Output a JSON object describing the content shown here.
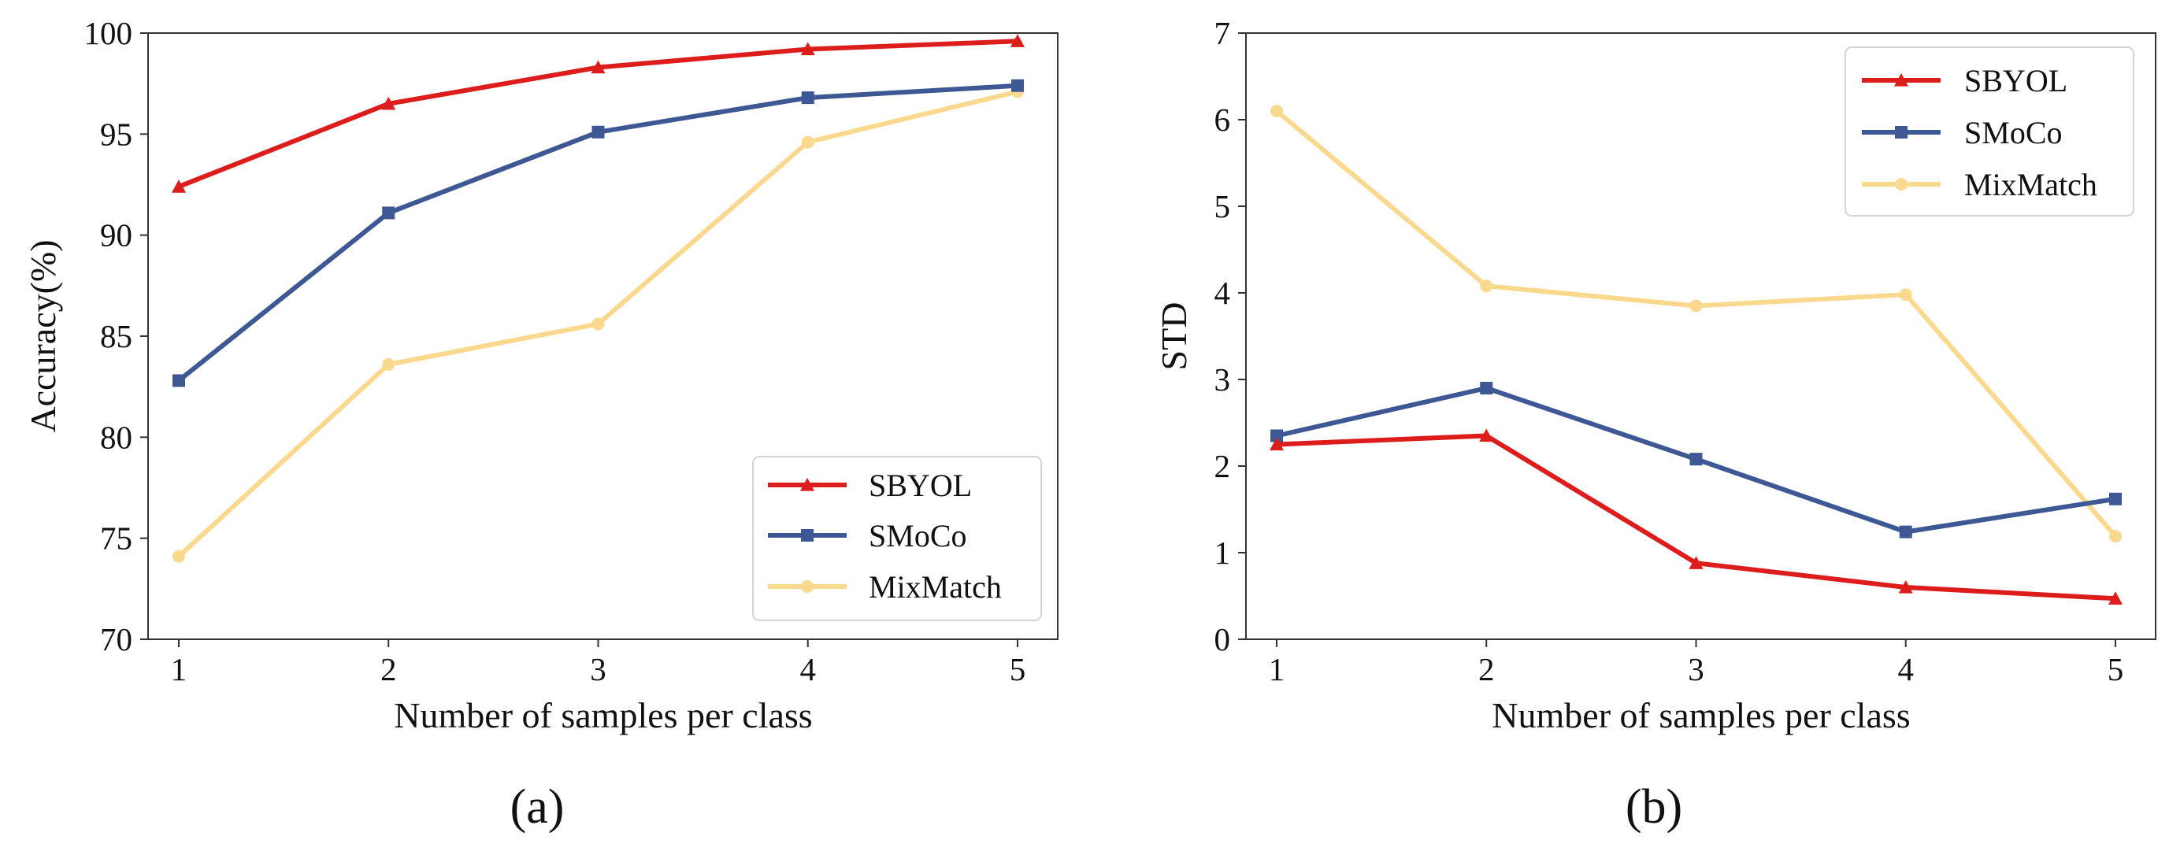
{
  "chart_data": [
    {
      "id": "a",
      "type": "line",
      "caption": "(a)",
      "title": "",
      "xlabel": "Number of samples per class",
      "ylabel": "Accuracy(%)",
      "x": [
        1,
        2,
        3,
        4,
        5
      ],
      "xticks": [
        "1",
        "2",
        "3",
        "4",
        "5"
      ],
      "ylim": [
        70,
        100
      ],
      "yticks": [
        "70",
        "75",
        "80",
        "85",
        "90",
        "95",
        "100"
      ],
      "grid": false,
      "legend_position": "lower-right",
      "series": [
        {
          "name": "SBYOL",
          "color": "#dd1c1c",
          "marker": "triangle",
          "values": [
            92.4,
            96.5,
            98.3,
            99.2,
            99.6
          ]
        },
        {
          "name": "SMoCo",
          "color": "#3d5894",
          "marker": "square",
          "values": [
            82.8,
            91.1,
            95.1,
            96.8,
            97.4
          ]
        },
        {
          "name": "MixMatch",
          "color": "#fad98e",
          "marker": "circle",
          "values": [
            74.1,
            83.6,
            85.6,
            94.6,
            97.1
          ]
        }
      ]
    },
    {
      "id": "b",
      "type": "line",
      "caption": "(b)",
      "title": "",
      "xlabel": "Number of samples per class",
      "ylabel": "STD",
      "x": [
        1,
        2,
        3,
        4,
        5
      ],
      "xticks": [
        "1",
        "2",
        "3",
        "4",
        "5"
      ],
      "ylim": [
        0,
        7
      ],
      "yticks": [
        "0",
        "1",
        "2",
        "3",
        "4",
        "5",
        "6",
        "7"
      ],
      "grid": false,
      "legend_position": "upper-right",
      "series": [
        {
          "name": "SBYOL",
          "color": "#dd1c1c",
          "marker": "triangle",
          "values": [
            2.25,
            2.35,
            0.88,
            0.6,
            0.47
          ]
        },
        {
          "name": "SMoCo",
          "color": "#3d5894",
          "marker": "square",
          "values": [
            2.35,
            2.9,
            2.08,
            1.24,
            1.62
          ]
        },
        {
          "name": "MixMatch",
          "color": "#fad98e",
          "marker": "circle",
          "values": [
            6.1,
            4.08,
            3.85,
            3.98,
            1.19
          ]
        }
      ]
    }
  ]
}
